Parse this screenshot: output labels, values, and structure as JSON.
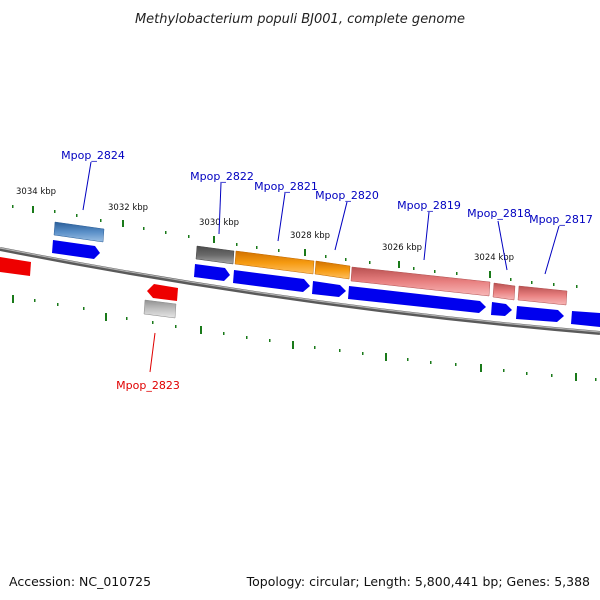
{
  "title": "Methylobacterium populi BJ001, complete genome",
  "accession_text": "Accession: NC_010725",
  "topology_text": "Topology: circular; Length: 5,800,441 bp; Genes: 5,388",
  "kbp_labels": [
    "3034 kbp",
    "3032 kbp",
    "3030 kbp",
    "3028 kbp",
    "3026 kbp",
    "3024 kbp"
  ],
  "gene_labels": [
    {
      "name": "Mpop_2824",
      "color": "#0000c0"
    },
    {
      "name": "Mpop_2822",
      "color": "#0000c0"
    },
    {
      "name": "Mpop_2821",
      "color": "#0000c0"
    },
    {
      "name": "Mpop_2820",
      "color": "#0000c0"
    },
    {
      "name": "Mpop_2819",
      "color": "#0000c0"
    },
    {
      "name": "Mpop_2818",
      "color": "#0000c0"
    },
    {
      "name": "Mpop_2817",
      "color": "#0000c0"
    },
    {
      "name": "Mpop_2823",
      "color": "#e00000"
    }
  ],
  "colors": {
    "backbone": "#808080",
    "cds": "#0000ee",
    "reverse_gene": "#ee0000",
    "tick": "#1a7a1a",
    "feature_blue": "#4a7fb8",
    "feature_gray": "#666666",
    "feature_orange": "#f08c00",
    "feature_pink": "#e87878",
    "feature_lightgray": "#b8b8b8"
  }
}
